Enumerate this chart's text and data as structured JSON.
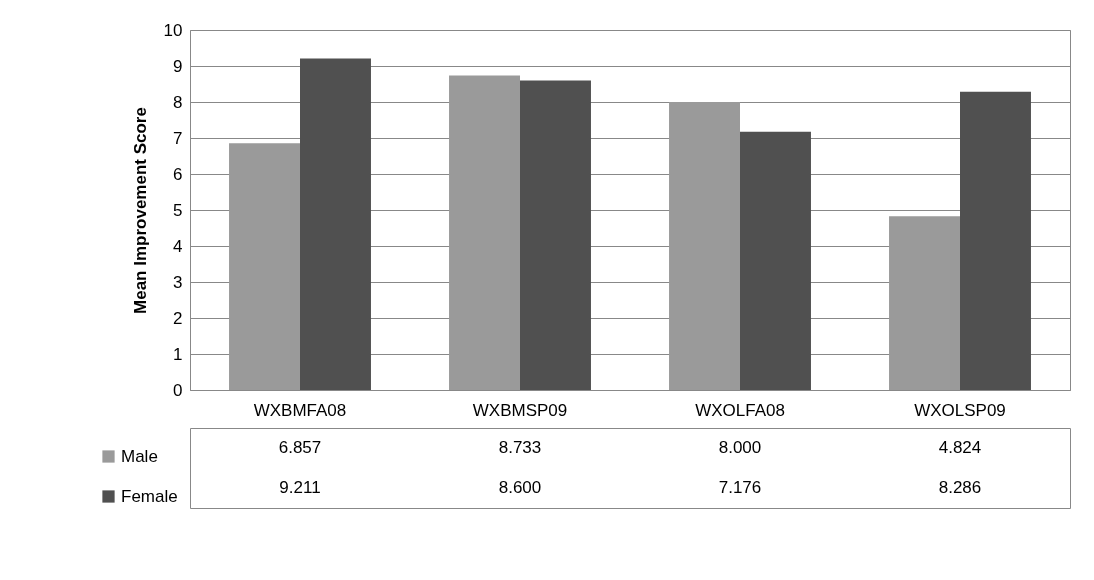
{
  "chart_data": {
    "type": "bar",
    "ylabel": "Mean Improvement Score",
    "categories": [
      "WXBMFA08",
      "WXBMSP09",
      "WXOLFA08",
      "WXOLSP09"
    ],
    "series": [
      {
        "name": "Male",
        "color": "#9a9a9a",
        "values": [
          6.857,
          8.733,
          8.0,
          4.824
        ],
        "value_labels": [
          "6.857",
          "8.733",
          "8.000",
          "4.824"
        ]
      },
      {
        "name": "Female",
        "color": "#505050",
        "values": [
          9.211,
          8.6,
          7.176,
          8.286
        ],
        "value_labels": [
          "9.211",
          "8.600",
          "7.176",
          "8.286"
        ]
      }
    ],
    "ylim": [
      0,
      10
    ],
    "yticks": [
      0,
      1,
      2,
      3,
      4,
      5,
      6,
      7,
      8,
      9,
      10
    ],
    "grid": "y",
    "legend": "bottom left"
  }
}
